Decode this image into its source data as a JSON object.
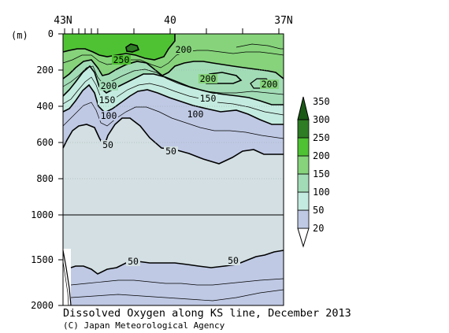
{
  "chart_data": {
    "type": "contour",
    "title": "Dissolved Oxygen along KS line, December 2013",
    "credit": "(C) Japan Meteorological Agency",
    "y_unit_label": "(m)",
    "x_axis": {
      "labels": [
        {
          "text": "43N",
          "lat": 43
        },
        {
          "text": "40",
          "lat": 40
        },
        {
          "text": "37N",
          "lat": 37
        }
      ],
      "range": [
        43,
        37
      ]
    },
    "y_axis": {
      "upper_ticks": [
        "0",
        "200",
        "400",
        "600",
        "800",
        "1000"
      ],
      "lower_ticks": [
        "1500",
        "2000"
      ],
      "upper_range": [
        0,
        1000
      ],
      "lower_range": [
        1000,
        2000
      ]
    },
    "contour_labels": [
      {
        "text": "250"
      },
      {
        "text": "200"
      },
      {
        "text": "200"
      },
      {
        "text": "200"
      },
      {
        "text": "200"
      },
      {
        "text": "150"
      },
      {
        "text": "150"
      },
      {
        "text": "100"
      },
      {
        "text": "100"
      },
      {
        "text": "50"
      },
      {
        "text": "50"
      },
      {
        "text": "50"
      },
      {
        "text": "50"
      }
    ],
    "colorbar": {
      "levels": [
        "20",
        "50",
        "100",
        "150",
        "200",
        "250",
        "300",
        "350"
      ],
      "colors": [
        "#d3dfe2",
        "#bfc9e4",
        "#c4ebdf",
        "#a2dcb6",
        "#86d37b",
        "#4fc234",
        "#2e7c24"
      ]
    },
    "colors": {
      "below_50": "#d3dfe2",
      "50_100": "#bfc9e4",
      "100_150": "#c4ebdf",
      "150_200": "#a2dcb6",
      "200_250": "#86d37b",
      "250_300": "#4fc234",
      "300_350": "#2e7c24"
    }
  }
}
